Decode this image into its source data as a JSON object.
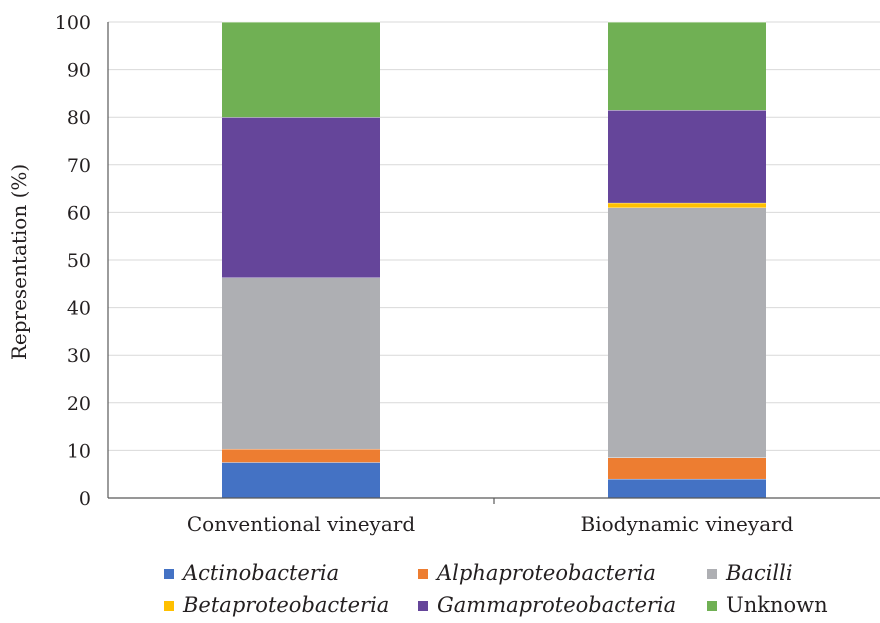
{
  "chart_data": {
    "type": "bar",
    "stacked": true,
    "title": "",
    "xlabel": "",
    "ylabel": "Representation (%)",
    "ylim": [
      0,
      100
    ],
    "yticks": [
      0,
      10,
      20,
      30,
      40,
      50,
      60,
      70,
      80,
      90,
      100
    ],
    "grid": true,
    "legend_position": "bottom",
    "categories": [
      "Conventional vineyard",
      "Biodynamic vineyard"
    ],
    "series": [
      {
        "name": "Actinobacteria",
        "italic": true,
        "color": "#4472c4",
        "values": [
          7.5,
          4.0
        ]
      },
      {
        "name": "Alphaproteobacteria",
        "italic": true,
        "color": "#ed7d31",
        "values": [
          2.8,
          4.5
        ]
      },
      {
        "name": "Bacilli",
        "italic": true,
        "color": "#aeafb3",
        "values": [
          36.0,
          52.5
        ]
      },
      {
        "name": "Betaproteobacteria",
        "italic": true,
        "color": "#ffc000",
        "values": [
          0.0,
          1.0
        ]
      },
      {
        "name": "Gammaproteobacteria",
        "italic": true,
        "color": "#65459a",
        "values": [
          33.7,
          19.5
        ]
      },
      {
        "name": "Unknown",
        "italic": false,
        "color": "#70b054",
        "values": [
          20.0,
          18.5
        ]
      }
    ]
  }
}
